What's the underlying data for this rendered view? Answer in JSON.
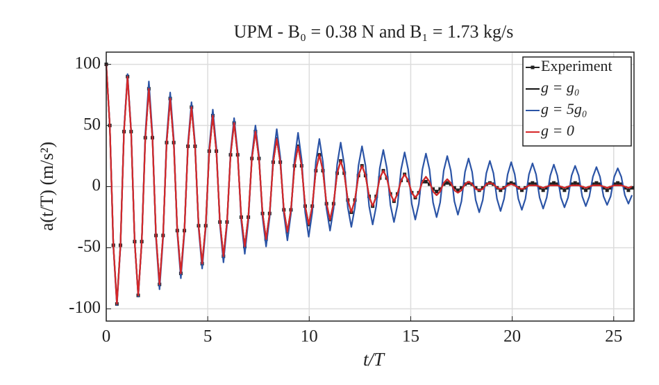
{
  "chart_data": {
    "type": "line",
    "title": "UPM - B₀ = 0.38 N and B₁ = 1.73 kg/s",
    "x_label": "t/T",
    "y_label": "a(t/T) (m/s²)",
    "xlim": [
      0,
      26
    ],
    "xticks": [
      0,
      5,
      10,
      15,
      20,
      25
    ],
    "ylim": [
      -110,
      110
    ],
    "yticks": [
      -100,
      -50,
      0,
      50,
      100
    ],
    "grid": true,
    "legend": "northeast",
    "x": [
      0,
      0.175,
      0.35,
      0.525,
      0.7,
      0.875,
      1.05,
      1.225,
      1.4,
      1.575,
      1.75,
      1.925,
      2.1,
      2.275,
      2.45,
      2.625,
      2.8,
      2.975,
      3.15,
      3.325,
      3.5,
      3.675,
      3.85,
      4.025,
      4.2,
      4.375,
      4.55,
      4.725,
      4.9,
      5.075,
      5.25,
      5.425,
      5.6,
      5.775,
      5.95,
      6.125,
      6.3,
      6.475,
      6.65,
      6.825,
      7,
      7.175,
      7.35,
      7.525,
      7.7,
      7.875,
      8.05,
      8.225,
      8.4,
      8.575,
      8.75,
      8.925,
      9.1,
      9.275,
      9.45,
      9.625,
      9.8,
      9.975,
      10.15,
      10.325,
      10.5,
      10.675,
      10.85,
      11.025,
      11.2,
      11.375,
      11.55,
      11.725,
      11.9,
      12.075,
      12.25,
      12.425,
      12.6,
      12.775,
      12.95,
      13.125,
      13.3,
      13.475,
      13.65,
      13.825,
      14,
      14.175,
      14.35,
      14.525,
      14.7,
      14.875,
      15.05,
      15.225,
      15.4,
      15.575,
      15.75,
      15.925,
      16.1,
      16.275,
      16.45,
      16.625,
      16.8,
      16.975,
      17.15,
      17.325,
      17.5,
      17.675,
      17.85,
      18.025,
      18.2,
      18.375,
      18.55,
      18.725,
      18.9,
      19.075,
      19.25,
      19.425,
      19.6,
      19.775,
      19.95,
      20.125,
      20.3,
      20.475,
      20.65,
      20.825,
      21,
      21.175,
      21.35,
      21.525,
      21.7,
      21.875,
      22.05,
      22.225,
      22.4,
      22.575,
      22.75,
      22.925,
      23.1,
      23.275,
      23.45,
      23.625,
      23.8,
      23.975,
      24.15,
      24.325,
      24.5,
      24.675,
      24.85,
      25.025,
      25.2,
      25.375,
      25.55,
      25.725,
      25.9
    ],
    "series": [
      {
        "name": "Experiment",
        "color": "#222222",
        "marker": "square",
        "values": [
          100,
          50,
          -48,
          -96,
          -48,
          45,
          90,
          45,
          -45,
          -89,
          -45,
          40,
          80,
          40,
          -40,
          -80,
          -40,
          36,
          72,
          36,
          -36,
          -71,
          -36,
          33,
          65,
          33,
          -32,
          -63,
          -32,
          29,
          58,
          29,
          -29,
          -57,
          -29,
          26,
          52,
          26,
          -25,
          -49,
          -25,
          23,
          45,
          23,
          -22,
          -43,
          -22,
          20,
          39,
          20,
          -19,
          -37,
          -19,
          17,
          33,
          17,
          -16,
          -31,
          -16,
          13,
          26,
          13,
          -14,
          -27,
          -14,
          11,
          21,
          11,
          -11,
          -21,
          -11,
          9,
          17,
          9,
          -8,
          -16,
          -8,
          7,
          13,
          7,
          -6,
          -12,
          -6,
          5,
          10,
          5,
          -5,
          -9,
          -5,
          4,
          4,
          2,
          -2,
          -4,
          -2,
          2,
          3,
          2,
          -1,
          -3,
          -1,
          2,
          3,
          2,
          -1,
          -3,
          -1,
          2,
          3,
          2,
          -1,
          -3,
          -1,
          2,
          3,
          2,
          -1,
          -3,
          -1,
          2,
          3,
          2,
          -1,
          -3,
          -1,
          2,
          3,
          2,
          -1,
          -3,
          -1,
          2,
          3,
          2,
          -1,
          -3,
          -1,
          2,
          3,
          2,
          -1,
          -3,
          -1,
          2,
          3,
          2,
          -1,
          -3,
          -1
        ]
      },
      {
        "name": "g = g₀",
        "color": "#111111",
        "values": [
          100,
          50,
          -48,
          -95,
          -48,
          46,
          90,
          45,
          -45,
          -89,
          -45,
          40,
          80,
          40,
          -40,
          -80,
          -40,
          36,
          72,
          36,
          -36,
          -71,
          -36,
          33,
          65,
          33,
          -32,
          -63,
          -32,
          29,
          58,
          29,
          -29,
          -57,
          -29,
          26,
          52,
          26,
          -25,
          -49,
          -25,
          23,
          45,
          23,
          -22,
          -43,
          -22,
          20,
          39,
          20,
          -19,
          -37,
          -19,
          17,
          33,
          17,
          -16,
          -31,
          -16,
          13,
          26,
          13,
          -14,
          -27,
          -14,
          11,
          21,
          11,
          -11,
          -21,
          -11,
          9,
          17,
          9,
          -8,
          -16,
          -8,
          7,
          13,
          7,
          -6,
          -12,
          -6,
          5,
          10,
          5,
          -5,
          -9,
          -5,
          4,
          8,
          4,
          -4,
          -7,
          -4,
          3,
          6,
          3,
          -3,
          -5,
          -3,
          2,
          4,
          2,
          -2,
          -3,
          -2,
          2,
          3,
          2,
          -1,
          -2,
          -1,
          1,
          2,
          1,
          -1,
          -2,
          -1,
          1,
          1,
          1,
          0,
          -1,
          0,
          1,
          1,
          1,
          0,
          -1,
          0,
          1,
          1,
          1,
          0,
          -1,
          0,
          1,
          1,
          1,
          0,
          -1,
          0,
          1,
          1,
          1,
          0,
          -1,
          0
        ]
      },
      {
        "name": "g = 5g₀",
        "color": "#2b54a6",
        "values": [
          100,
          50,
          -49,
          -97,
          -49,
          46,
          92,
          46,
          -45,
          -90,
          -45,
          43,
          86,
          43,
          -42,
          -84,
          -42,
          39,
          77,
          39,
          -38,
          -75,
          -38,
          35,
          69,
          35,
          -34,
          -67,
          -34,
          32,
          63,
          32,
          -31,
          -62,
          -31,
          28,
          56,
          28,
          -28,
          -55,
          -28,
          25,
          50,
          25,
          -25,
          -49,
          -25,
          24,
          47,
          24,
          -22,
          -44,
          -22,
          22,
          44,
          22,
          -21,
          -41,
          -21,
          20,
          39,
          20,
          -18,
          -36,
          -18,
          18,
          36,
          18,
          -17,
          -33,
          -17,
          17,
          33,
          17,
          -16,
          -31,
          -16,
          15,
          30,
          15,
          -15,
          -29,
          -15,
          14,
          28,
          14,
          -14,
          -27,
          -14,
          14,
          27,
          14,
          -13,
          -25,
          -13,
          13,
          25,
          13,
          -12,
          -23,
          -12,
          12,
          23,
          12,
          -11,
          -21,
          -11,
          11,
          21,
          11,
          -10,
          -20,
          -10,
          10,
          20,
          10,
          -10,
          -19,
          -10,
          10,
          19,
          10,
          -9,
          -18,
          -9,
          9,
          18,
          9,
          -9,
          -17,
          -9,
          9,
          17,
          9,
          -8,
          -16,
          -8,
          8,
          16,
          8,
          -8,
          -15,
          -8,
          8,
          15,
          8,
          -7,
          -14,
          -7
        ]
      },
      {
        "name": "g = 0",
        "color": "#d62728",
        "values": [
          100,
          50,
          -48,
          -96,
          -48,
          45,
          90,
          45,
          -45,
          -89,
          -45,
          40,
          80,
          40,
          -40,
          -80,
          -40,
          36,
          72,
          36,
          -36,
          -71,
          -36,
          33,
          65,
          33,
          -32,
          -63,
          -32,
          29,
          58,
          29,
          -29,
          -57,
          -29,
          26,
          52,
          26,
          -25,
          -49,
          -25,
          23,
          45,
          23,
          -22,
          -43,
          -22,
          20,
          39,
          20,
          -19,
          -37,
          -19,
          17,
          33,
          17,
          -16,
          -31,
          -16,
          13,
          26,
          13,
          -14,
          -27,
          -14,
          11,
          21,
          11,
          -11,
          -21,
          -11,
          9,
          17,
          9,
          -8,
          -16,
          -8,
          7,
          13,
          7,
          -6,
          -12,
          -6,
          5,
          10,
          5,
          -5,
          -9,
          -5,
          4,
          8,
          4,
          -4,
          -7,
          -4,
          3,
          6,
          3,
          -3,
          -5,
          -3,
          2,
          4,
          2,
          -2,
          -3,
          -2,
          2,
          3,
          2,
          -1,
          -2,
          -1,
          1,
          2,
          1,
          -1,
          -2,
          -1,
          1,
          1,
          1,
          0,
          -1,
          0,
          1,
          1,
          1,
          0,
          -1,
          0,
          1,
          1,
          1,
          0,
          -1,
          0,
          1,
          1,
          1,
          0,
          -1,
          0,
          1,
          1,
          1,
          0,
          -1,
          0
        ]
      }
    ]
  }
}
